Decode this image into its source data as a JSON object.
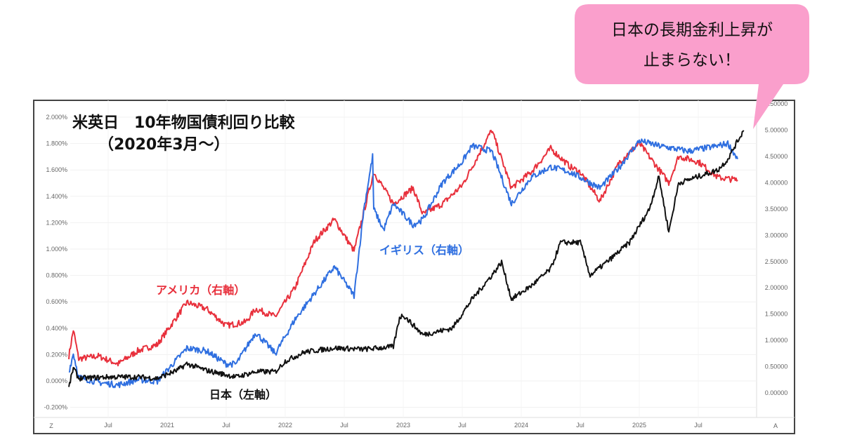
{
  "callout": {
    "line1": "日本の長期金利上昇が",
    "line2": "止まらない！",
    "color": "#fa9fcc"
  },
  "chart_data": {
    "type": "line",
    "title": "米英日　10年物国債利回り比較",
    "subtitle": "（2020年3月～）",
    "x_ticks": [
      "Jul",
      "2021",
      "Jul",
      "2022",
      "Jul",
      "2023",
      "Jul",
      "2024",
      "Jul",
      "2025",
      "Jul"
    ],
    "left_axis": {
      "ticks": [
        "2.000%",
        "1.800%",
        "1.600%",
        "1.400%",
        "1.200%",
        "1.000%",
        "0.800%",
        "0.600%",
        "0.400%",
        "0.200%",
        "0.000%",
        "-0.200%"
      ],
      "range": [
        -0.2,
        2.0
      ]
    },
    "right_axis": {
      "ticks": [
        "5.50000",
        "5.00000",
        "4.50000",
        "4.00000",
        "3.50000",
        "3.00000",
        "2.50000",
        "2.00000",
        "1.50000",
        "1.00000",
        "0.50000",
        "0.00000"
      ],
      "range": [
        0,
        5.5
      ]
    },
    "corner_left": "Z",
    "corner_right": "A",
    "grid": true,
    "series": [
      {
        "name": "アメリカ（右軸）",
        "axis": "right",
        "color": "#e8303c",
        "points": [
          [
            "2020-03",
            0.7
          ],
          [
            "2020-03-15",
            1.2
          ],
          [
            "2020-04",
            0.65
          ],
          [
            "2020-06",
            0.7
          ],
          [
            "2020-08",
            0.55
          ],
          [
            "2020-10",
            0.8
          ],
          [
            "2020-12",
            0.92
          ],
          [
            "2021-03",
            1.72
          ],
          [
            "2021-05",
            1.6
          ],
          [
            "2021-07",
            1.28
          ],
          [
            "2021-09",
            1.35
          ],
          [
            "2021-10",
            1.6
          ],
          [
            "2021-12",
            1.45
          ],
          [
            "2022-02",
            2.0
          ],
          [
            "2022-04",
            2.9
          ],
          [
            "2022-06",
            3.3
          ],
          [
            "2022-08",
            2.7
          ],
          [
            "2022-10",
            4.2
          ],
          [
            "2022-12",
            3.6
          ],
          [
            "2023-02",
            3.9
          ],
          [
            "2023-03",
            3.4
          ],
          [
            "2023-05",
            3.6
          ],
          [
            "2023-07",
            3.95
          ],
          [
            "2023-10",
            5.0
          ],
          [
            "2023-12",
            3.9
          ],
          [
            "2024-02",
            4.2
          ],
          [
            "2024-04",
            4.65
          ],
          [
            "2024-06",
            4.3
          ],
          [
            "2024-07",
            4.2
          ],
          [
            "2024-09",
            3.65
          ],
          [
            "2024-11",
            4.4
          ],
          [
            "2025-01",
            4.75
          ],
          [
            "2025-04",
            4.0
          ],
          [
            "2025-05",
            4.5
          ],
          [
            "2025-07",
            4.4
          ],
          [
            "2025-09",
            4.1
          ],
          [
            "2025-11",
            4.05
          ]
        ]
      },
      {
        "name": "イギリス（右軸）",
        "axis": "right",
        "color": "#2f6fe0",
        "points": [
          [
            "2020-03",
            0.4
          ],
          [
            "2020-03-15",
            0.75
          ],
          [
            "2020-04",
            0.3
          ],
          [
            "2020-06",
            0.2
          ],
          [
            "2020-08",
            0.15
          ],
          [
            "2020-10",
            0.25
          ],
          [
            "2020-12",
            0.22
          ],
          [
            "2021-03",
            0.85
          ],
          [
            "2021-05",
            0.8
          ],
          [
            "2021-07",
            0.55
          ],
          [
            "2021-08",
            0.55
          ],
          [
            "2021-10",
            1.15
          ],
          [
            "2021-12",
            0.75
          ],
          [
            "2022-02",
            1.4
          ],
          [
            "2022-04",
            1.9
          ],
          [
            "2022-06",
            2.4
          ],
          [
            "2022-08",
            1.85
          ],
          [
            "2022-09",
            3.5
          ],
          [
            "2022-09-28",
            4.5
          ],
          [
            "2022-10",
            3.5
          ],
          [
            "2022-11",
            3.1
          ],
          [
            "2022-12",
            3.6
          ],
          [
            "2023-02",
            3.2
          ],
          [
            "2023-03",
            3.3
          ],
          [
            "2023-05",
            4.0
          ],
          [
            "2023-07",
            4.4
          ],
          [
            "2023-08",
            4.7
          ],
          [
            "2023-10",
            4.6
          ],
          [
            "2023-12",
            3.6
          ],
          [
            "2024-02",
            4.1
          ],
          [
            "2024-04",
            4.3
          ],
          [
            "2024-06",
            4.2
          ],
          [
            "2024-09",
            3.9
          ],
          [
            "2024-11",
            4.3
          ],
          [
            "2025-01",
            4.8
          ],
          [
            "2025-03",
            4.7
          ],
          [
            "2025-06",
            4.6
          ],
          [
            "2025-09",
            4.7
          ],
          [
            "2025-10",
            4.75
          ],
          [
            "2025-11",
            4.45
          ]
        ]
      },
      {
        "name": "日本（左軸）",
        "axis": "left",
        "color": "#111111",
        "points": [
          [
            "2020-03",
            -0.05
          ],
          [
            "2020-03-15",
            0.1
          ],
          [
            "2020-04",
            0.02
          ],
          [
            "2020-07",
            0.03
          ],
          [
            "2020-10",
            0.03
          ],
          [
            "2020-12",
            0.02
          ],
          [
            "2021-02",
            0.08
          ],
          [
            "2021-03",
            0.13
          ],
          [
            "2021-05",
            0.08
          ],
          [
            "2021-08",
            0.03
          ],
          [
            "2021-10",
            0.07
          ],
          [
            "2021-12",
            0.07
          ],
          [
            "2022-01",
            0.15
          ],
          [
            "2022-03",
            0.22
          ],
          [
            "2022-06",
            0.25
          ],
          [
            "2022-09",
            0.24
          ],
          [
            "2022-12",
            0.26
          ],
          [
            "2022-12-20",
            0.48
          ],
          [
            "2023-01",
            0.5
          ],
          [
            "2023-03",
            0.35
          ],
          [
            "2023-06",
            0.4
          ],
          [
            "2023-08",
            0.62
          ],
          [
            "2023-10",
            0.8
          ],
          [
            "2023-11",
            0.9
          ],
          [
            "2023-12",
            0.62
          ],
          [
            "2024-02",
            0.72
          ],
          [
            "2024-04",
            0.85
          ],
          [
            "2024-05",
            1.05
          ],
          [
            "2024-07",
            1.05
          ],
          [
            "2024-08",
            0.8
          ],
          [
            "2024-10",
            0.92
          ],
          [
            "2024-12",
            1.05
          ],
          [
            "2025-02",
            1.3
          ],
          [
            "2025-03",
            1.55
          ],
          [
            "2025-04",
            1.13
          ],
          [
            "2025-05",
            1.5
          ],
          [
            "2025-07",
            1.55
          ],
          [
            "2025-09",
            1.6
          ],
          [
            "2025-10",
            1.68
          ],
          [
            "2025-11",
            1.82
          ],
          [
            "2025-11-20",
            1.9
          ]
        ]
      }
    ]
  }
}
